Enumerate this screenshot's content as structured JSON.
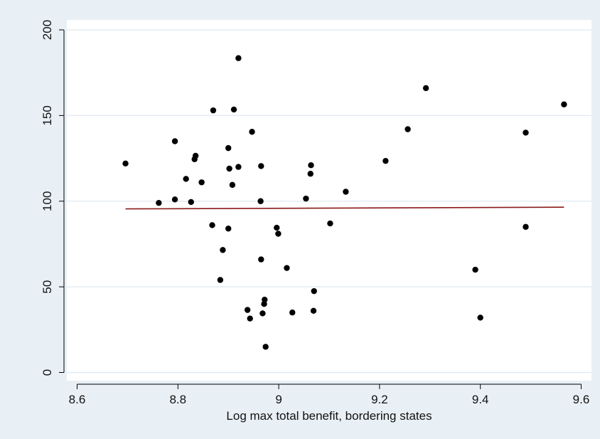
{
  "chart_data": {
    "type": "scatter",
    "title": "",
    "xlabel": "Log max total benefit, bordering states",
    "ylabel": "",
    "xlim": [
      8.6,
      9.6
    ],
    "ylim": [
      0,
      200
    ],
    "xticks": [
      "8.6",
      "8.8",
      "9",
      "9.2",
      "9.4",
      "9.6"
    ],
    "yticks": [
      "0",
      "50",
      "100",
      "150",
      "200"
    ],
    "grid": true,
    "legend": "none",
    "colors": {
      "marker": "#000000",
      "fit_line": "#8b1a1a",
      "plot_bg": "#ffffff",
      "outer_bg": "#e9f0f5",
      "grid": "#e4ecf2"
    },
    "series": [
      {
        "kind": "scatter",
        "points": [
          [
            8.696,
            122
          ],
          [
            8.762,
            99
          ],
          [
            8.794,
            101
          ],
          [
            8.794,
            135
          ],
          [
            8.816,
            113
          ],
          [
            8.826,
            99.5
          ],
          [
            8.833,
            124.5
          ],
          [
            8.835,
            126.5
          ],
          [
            8.847,
            111
          ],
          [
            8.868,
            86
          ],
          [
            8.87,
            153
          ],
          [
            8.884,
            54
          ],
          [
            8.889,
            71.5
          ],
          [
            8.9,
            84
          ],
          [
            8.9,
            131
          ],
          [
            8.902,
            119
          ],
          [
            8.908,
            109.5
          ],
          [
            8.911,
            153.5
          ],
          [
            8.92,
            120
          ],
          [
            8.92,
            183.5
          ],
          [
            8.938,
            36.5
          ],
          [
            8.943,
            31.5
          ],
          [
            8.947,
            140.5
          ],
          [
            8.964,
            100
          ],
          [
            8.965,
            66
          ],
          [
            8.965,
            120.5
          ],
          [
            8.968,
            34.5
          ],
          [
            8.971,
            40
          ],
          [
            8.972,
            42.5
          ],
          [
            8.974,
            15
          ],
          [
            8.996,
            84.5
          ],
          [
            8.999,
            81
          ],
          [
            9.016,
            61
          ],
          [
            9.027,
            35
          ],
          [
            9.054,
            101.5
          ],
          [
            9.063,
            116
          ],
          [
            9.064,
            121
          ],
          [
            9.069,
            36
          ],
          [
            9.07,
            47.5
          ],
          [
            9.102,
            87
          ],
          [
            9.133,
            105.5
          ],
          [
            9.212,
            123.5
          ],
          [
            9.256,
            142
          ],
          [
            9.292,
            166
          ],
          [
            9.39,
            60
          ],
          [
            9.4,
            32
          ],
          [
            9.49,
            140
          ],
          [
            9.49,
            85
          ],
          [
            9.566,
            156.5
          ]
        ]
      },
      {
        "kind": "line",
        "points": [
          [
            8.696,
            95.5
          ],
          [
            9.566,
            96.5
          ]
        ]
      }
    ]
  }
}
